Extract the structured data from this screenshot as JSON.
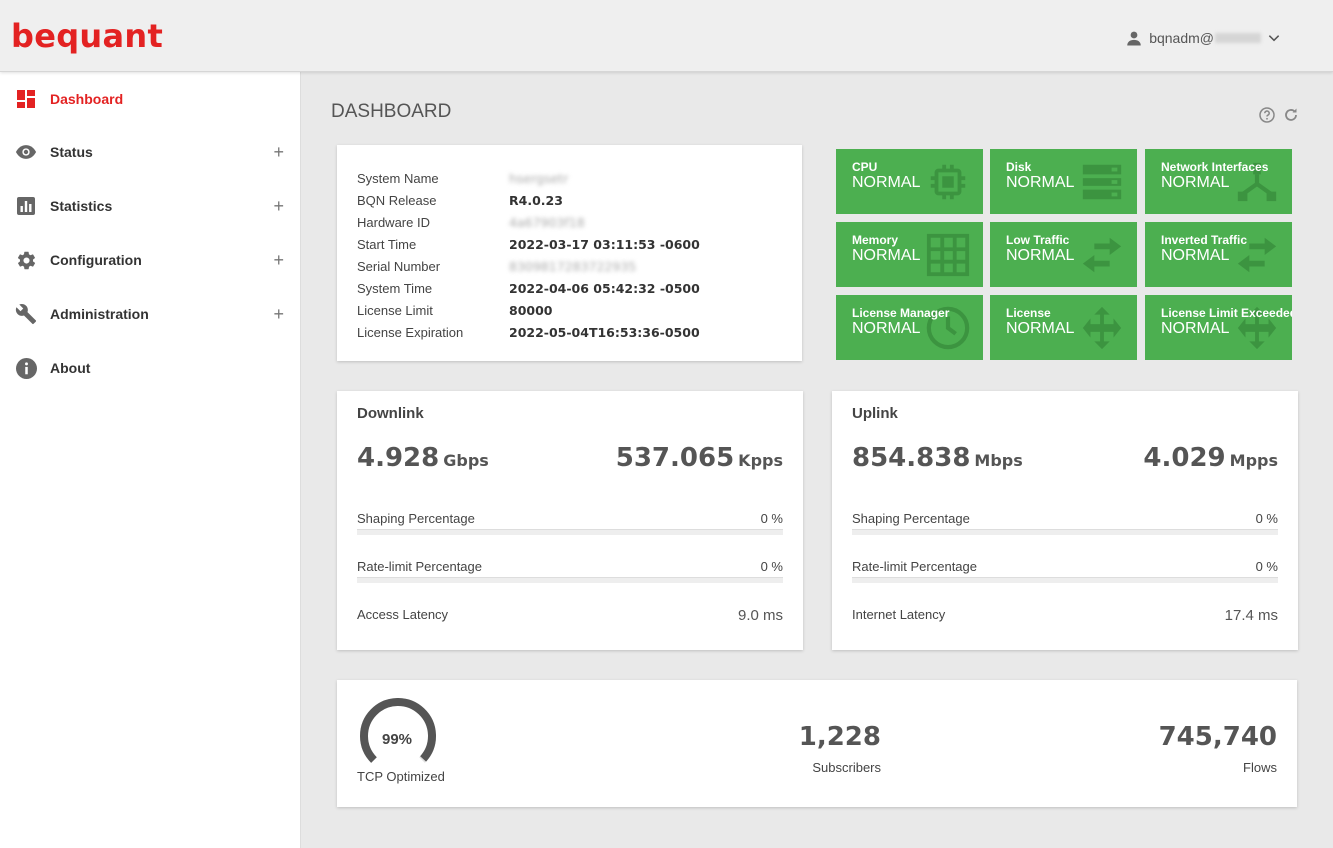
{
  "header": {
    "logo": "bequant",
    "username": "bqnadm@"
  },
  "sidebar": {
    "items": [
      {
        "label": "Dashboard",
        "icon": "dashboard-icon",
        "active": true
      },
      {
        "label": "Status",
        "icon": "eye-icon",
        "expand": "+"
      },
      {
        "label": "Statistics",
        "icon": "bar-chart-icon",
        "expand": "+"
      },
      {
        "label": "Configuration",
        "icon": "gear-icon",
        "expand": "+"
      },
      {
        "label": "Administration",
        "icon": "wrench-icon",
        "expand": "+"
      },
      {
        "label": "About",
        "icon": "info-icon"
      }
    ]
  },
  "page": {
    "title": "DASHBOARD"
  },
  "system_info": {
    "rows": [
      {
        "key": "System Name",
        "value": "hsergsetr",
        "blurred": true
      },
      {
        "key": "BQN Release",
        "value": "R4.0.23"
      },
      {
        "key": "Hardware ID",
        "value": "4a67903f18",
        "blurred": true
      },
      {
        "key": "Start Time",
        "value": "2022-03-17 03:11:53 -0600"
      },
      {
        "key": "Serial Number",
        "value": "8309817283722935",
        "blurred": true
      },
      {
        "key": "System Time",
        "value": "2022-04-06 05:42:32 -0500"
      },
      {
        "key": "License Limit",
        "value": "80000"
      },
      {
        "key": "License Expiration",
        "value": "2022-05-04T16:53:36-0500"
      }
    ]
  },
  "status_tiles": [
    {
      "label": "CPU",
      "status": "NORMAL",
      "icon": "cpu-icon"
    },
    {
      "label": "Disk",
      "status": "NORMAL",
      "icon": "disk-icon"
    },
    {
      "label": "Network Interfaces",
      "status": "NORMAL",
      "icon": "network-icon"
    },
    {
      "label": "Memory",
      "status": "NORMAL",
      "icon": "memory-grid-icon"
    },
    {
      "label": "Low Traffic",
      "status": "NORMAL",
      "icon": "swap-arrows-icon"
    },
    {
      "label": "Inverted Traffic",
      "status": "NORMAL",
      "icon": "swap-arrows-icon"
    },
    {
      "label": "License Manager",
      "status": "NORMAL",
      "icon": "clock-icon"
    },
    {
      "label": "License",
      "status": "NORMAL",
      "icon": "move-arrows-icon"
    },
    {
      "label": "License Limit Exceeded",
      "status": "NORMAL",
      "icon": "move-arrows-icon"
    }
  ],
  "colors": {
    "brand": "#e32222",
    "tile_green": "#4caf50"
  },
  "downlink": {
    "title": "Downlink",
    "throughput": "4.928",
    "throughput_unit": "Gbps",
    "packets": "537.065",
    "packets_unit": "Kpps",
    "shaping_label": "Shaping Percentage",
    "shaping_value": "0 %",
    "shaping_fraction": 0,
    "ratelimit_label": "Rate-limit Percentage",
    "ratelimit_value": "0 %",
    "ratelimit_fraction": 0,
    "latency_label": "Access Latency",
    "latency_value": "9.0 ms"
  },
  "uplink": {
    "title": "Uplink",
    "throughput": "854.838",
    "throughput_unit": "Mbps",
    "packets": "4.029",
    "packets_unit": "Mpps",
    "shaping_label": "Shaping Percentage",
    "shaping_value": "0 %",
    "shaping_fraction": 0,
    "ratelimit_label": "Rate-limit Percentage",
    "ratelimit_value": "0 %",
    "ratelimit_fraction": 0,
    "latency_label": "Internet Latency",
    "latency_value": "17.4 ms"
  },
  "summary": {
    "tcp_optimized_value": "99%",
    "tcp_optimized_fraction": 0.99,
    "tcp_optimized_label": "TCP Optimized",
    "subscribers_value": "1,228",
    "subscribers_label": "Subscribers",
    "flows_value": "745,740",
    "flows_label": "Flows"
  }
}
